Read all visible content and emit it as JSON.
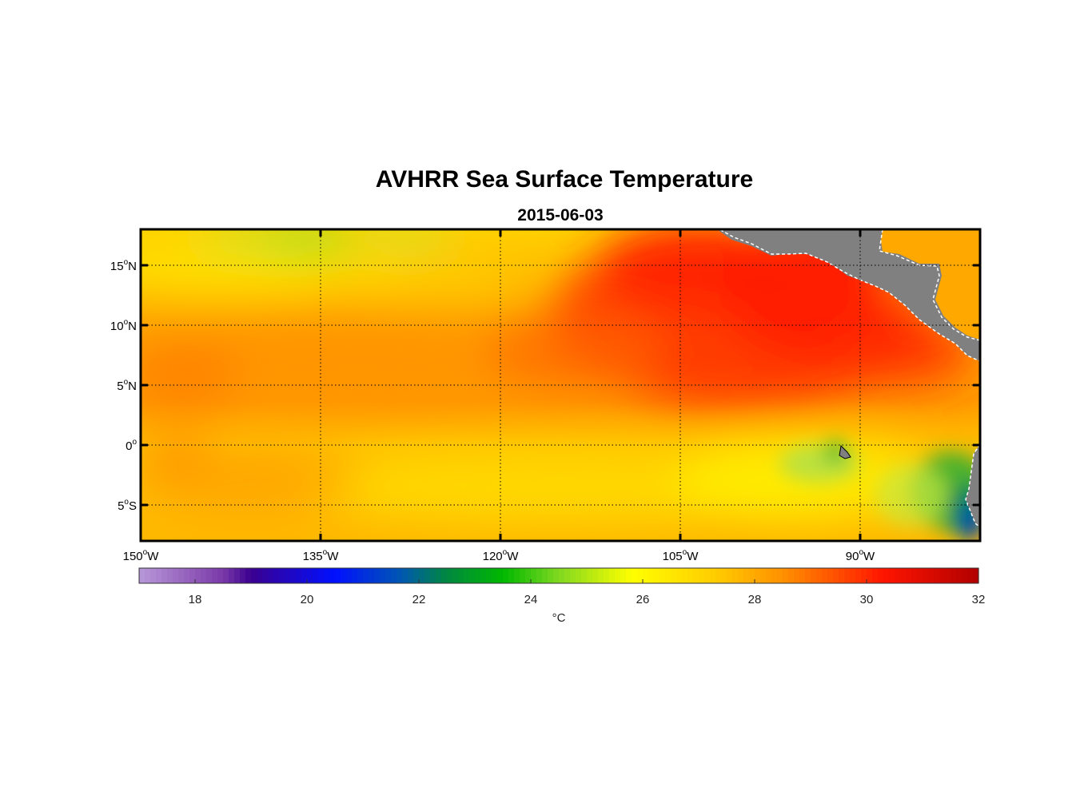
{
  "chart_data": {
    "type": "heatmap",
    "title": "AVHRR Sea Surface Temperature",
    "subtitle": "2015-06-03",
    "xlim": [
      -150,
      -80
    ],
    "ylim": [
      -8,
      18
    ],
    "x_ticks": [
      {
        "value": -150,
        "deg": "150",
        "hemi": "W"
      },
      {
        "value": -135,
        "deg": "135",
        "hemi": "W"
      },
      {
        "value": -120,
        "deg": "120",
        "hemi": "W"
      },
      {
        "value": -105,
        "deg": "105",
        "hemi": "W"
      },
      {
        "value": -90,
        "deg": "90",
        "hemi": "W"
      }
    ],
    "y_ticks": [
      {
        "value": 15,
        "deg": "15",
        "hemi": "N"
      },
      {
        "value": 10,
        "deg": "10",
        "hemi": "N"
      },
      {
        "value": 5,
        "deg": "5",
        "hemi": "N"
      },
      {
        "value": 0,
        "deg": "0",
        "hemi": ""
      },
      {
        "value": -5,
        "deg": "5",
        "hemi": "S"
      }
    ],
    "grid": true,
    "colorbar": {
      "min": 17,
      "max": 32,
      "ticks": [
        18,
        20,
        22,
        24,
        26,
        28,
        30,
        32
      ],
      "label": "°C",
      "stops": [
        {
          "value": 17,
          "color": "#b898d8"
        },
        {
          "value": 18.5,
          "color": "#7a3aa8"
        },
        {
          "value": 19,
          "color": "#3a0090"
        },
        {
          "value": 20.5,
          "color": "#0010ff"
        },
        {
          "value": 21.7,
          "color": "#0058b0"
        },
        {
          "value": 22.5,
          "color": "#008840"
        },
        {
          "value": 23.5,
          "color": "#00b800"
        },
        {
          "value": 24.5,
          "color": "#80d820"
        },
        {
          "value": 25.8,
          "color": "#ffff00"
        },
        {
          "value": 27.3,
          "color": "#ffcc00"
        },
        {
          "value": 28.5,
          "color": "#ff9000"
        },
        {
          "value": 30.3,
          "color": "#ff1500"
        },
        {
          "value": 32,
          "color": "#b00000"
        }
      ]
    },
    "field_description": "Warm pool (29-31 °C) north of 5°N east of 120°W; 27-28.5 °C across most of the domain; cooler 24-25 °C patches near 145-125°W north of 15°N and west of Galápagos; coldest (~20-22 °C) off the coast near 82°W, 4-8°S.",
    "land_color": "#808080",
    "frame_color": "#000000"
  }
}
